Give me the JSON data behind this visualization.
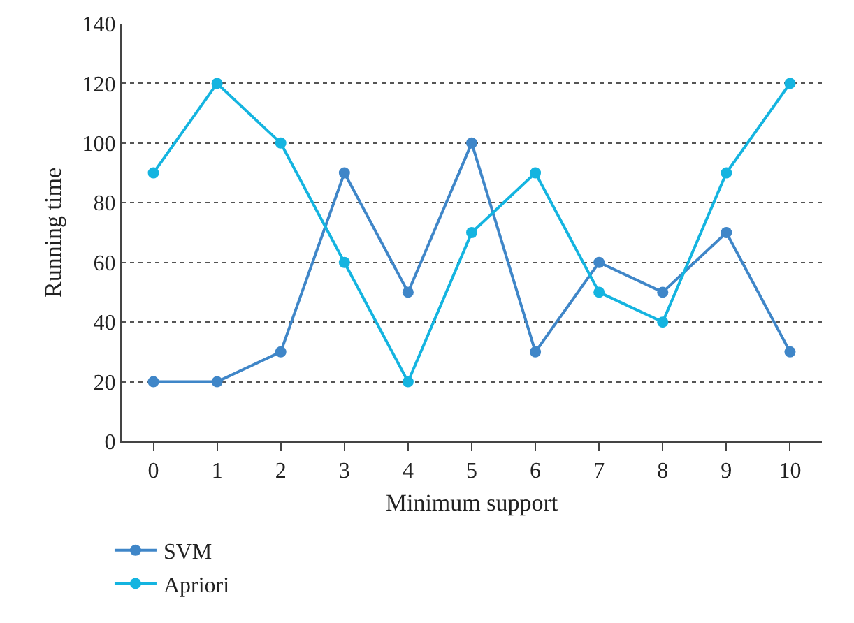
{
  "chart_data": {
    "type": "line",
    "xlabel": "Minimum support",
    "ylabel": "Running time",
    "x": [
      0,
      1,
      2,
      3,
      4,
      5,
      6,
      7,
      8,
      9,
      10
    ],
    "series": [
      {
        "name": "SVM",
        "color": "#3f86c8",
        "values": [
          20,
          20,
          30,
          90,
          50,
          100,
          30,
          60,
          50,
          70,
          30
        ]
      },
      {
        "name": "Apriori",
        "color": "#14b4e0",
        "values": [
          90,
          120,
          100,
          60,
          20,
          70,
          90,
          50,
          40,
          90,
          120
        ]
      }
    ],
    "xlim": [
      -0.5,
      10.5
    ],
    "xticks": [
      0,
      1,
      2,
      3,
      4,
      5,
      6,
      7,
      8,
      9,
      10
    ],
    "ylim": [
      0,
      140
    ],
    "yticks": [
      0,
      20,
      40,
      60,
      80,
      100,
      120,
      140
    ],
    "grid": "y",
    "legend": "bottom left",
    "marker": "circle",
    "line_style": "solid"
  }
}
